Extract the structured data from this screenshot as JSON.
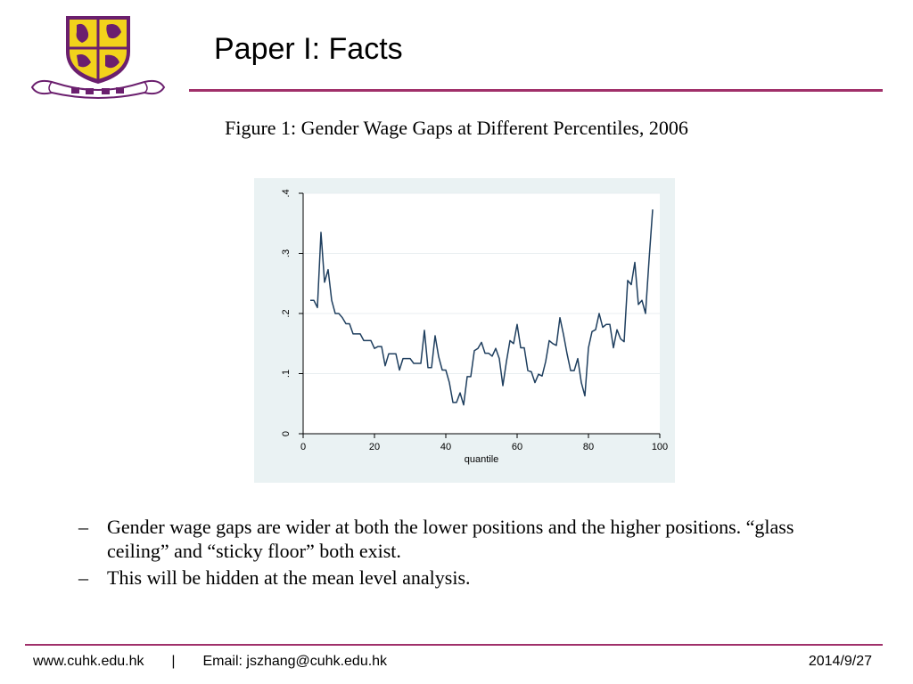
{
  "header": {
    "title": "Paper I: Facts"
  },
  "figure": {
    "caption": "Figure 1: Gender Wage Gaps at Different Percentiles, 2006"
  },
  "chart_data": {
    "type": "line",
    "title": "",
    "xlabel": "quantile",
    "ylabel": "",
    "xlim": [
      0,
      100
    ],
    "ylim": [
      0,
      0.4
    ],
    "x_ticks": [
      "0",
      "20",
      "40",
      "60",
      "80",
      "100"
    ],
    "y_ticks": [
      "0",
      ".1",
      ".2",
      ".3",
      ".4"
    ],
    "grid": "horizontal",
    "line_color": "#1f3f5f",
    "background": "#eaf2f3",
    "x": [
      2,
      3,
      4,
      5,
      6,
      7,
      8,
      9,
      10,
      11,
      12,
      13,
      14,
      15,
      16,
      17,
      18,
      19,
      20,
      21,
      22,
      23,
      24,
      25,
      26,
      27,
      28,
      29,
      30,
      31,
      32,
      33,
      34,
      35,
      36,
      37,
      38,
      39,
      40,
      41,
      42,
      43,
      44,
      45,
      46,
      47,
      48,
      49,
      50,
      51,
      52,
      53,
      54,
      55,
      56,
      57,
      58,
      59,
      60,
      61,
      62,
      63,
      64,
      65,
      66,
      67,
      68,
      69,
      70,
      71,
      72,
      73,
      74,
      75,
      76,
      77,
      78,
      79,
      80,
      81,
      82,
      83,
      84,
      85,
      86,
      87,
      88,
      89,
      90,
      91,
      92,
      93,
      94,
      95,
      96,
      97,
      98
    ],
    "y": [
      0.222,
      0.222,
      0.21,
      0.335,
      0.252,
      0.273,
      0.222,
      0.2,
      0.2,
      0.193,
      0.183,
      0.183,
      0.166,
      0.166,
      0.166,
      0.155,
      0.155,
      0.155,
      0.142,
      0.145,
      0.145,
      0.113,
      0.133,
      0.133,
      0.133,
      0.106,
      0.125,
      0.125,
      0.125,
      0.117,
      0.117,
      0.117,
      0.172,
      0.11,
      0.11,
      0.163,
      0.128,
      0.106,
      0.106,
      0.085,
      0.052,
      0.052,
      0.068,
      0.048,
      0.095,
      0.095,
      0.138,
      0.142,
      0.152,
      0.134,
      0.134,
      0.129,
      0.142,
      0.125,
      0.08,
      0.12,
      0.155,
      0.15,
      0.182,
      0.143,
      0.143,
      0.105,
      0.103,
      0.085,
      0.099,
      0.096,
      0.12,
      0.155,
      0.15,
      0.147,
      0.193,
      0.165,
      0.133,
      0.105,
      0.105,
      0.125,
      0.085,
      0.063,
      0.143,
      0.17,
      0.173,
      0.2,
      0.177,
      0.182,
      0.182,
      0.143,
      0.173,
      0.158,
      0.153,
      0.255,
      0.248,
      0.285,
      0.215,
      0.222,
      0.2,
      0.29,
      0.373
    ]
  },
  "bullets": [
    {
      "marker": "–",
      "text": "Gender wage gaps are wider at both the lower positions and the higher positions. “glass ceiling” and “sticky floor” both exist."
    },
    {
      "marker": "–",
      "text": "This will be hidden at the mean level analysis."
    }
  ],
  "footer": {
    "website": "www.cuhk.edu.hk",
    "separator": "|",
    "email": "Email: jszhang@cuhk.edu.hk",
    "date": "2014/9/27"
  },
  "colors": {
    "accent": "#a0306a",
    "logo_purple": "#6b1f6e",
    "logo_gold": "#f2d21b"
  },
  "icons": {
    "logo": "university-crest-logo"
  }
}
